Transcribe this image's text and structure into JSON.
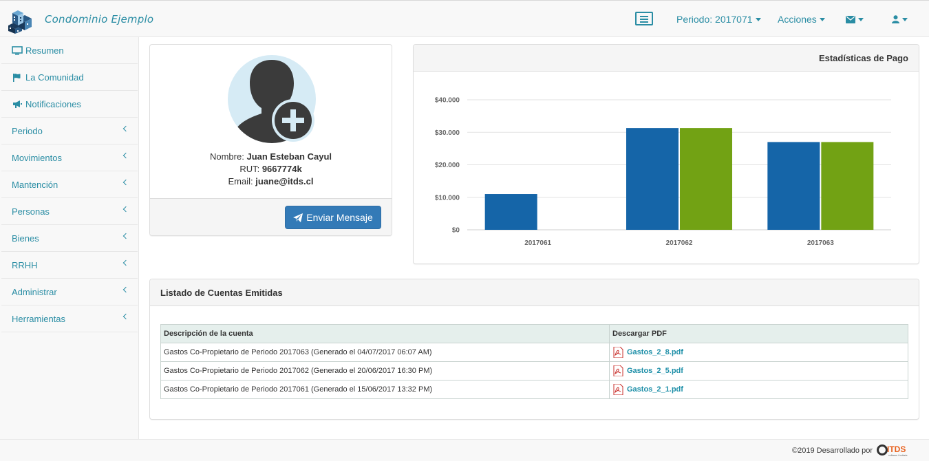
{
  "app": {
    "title": "Condominio Ejemplo"
  },
  "navbar": {
    "periodo_label": "Periodo: 2017071",
    "acciones_label": "Acciones"
  },
  "sidebar": {
    "items": [
      {
        "label": "Resumen",
        "icon": "monitor-icon"
      },
      {
        "label": "La Comunidad",
        "icon": "flag-icon"
      },
      {
        "label": "Notificaciones",
        "icon": "bullhorn-icon"
      },
      {
        "label": "Periodo",
        "icon": "chevron-left-icon"
      },
      {
        "label": "Movimientos",
        "icon": "chevron-left-icon"
      },
      {
        "label": "Mantención",
        "icon": "chevron-left-icon"
      },
      {
        "label": "Personas",
        "icon": "chevron-left-icon"
      },
      {
        "label": "Bienes",
        "icon": "chevron-left-icon"
      },
      {
        "label": "RRHH",
        "icon": "chevron-left-icon"
      },
      {
        "label": "Administrar",
        "icon": "chevron-left-icon"
      },
      {
        "label": "Herramientas",
        "icon": "chevron-left-icon"
      }
    ]
  },
  "profile": {
    "nombre_label": "Nombre:",
    "nombre": "Juan Esteban Cayul",
    "rut_label": "RUT:",
    "rut": "9667774k",
    "email_label": "Email:",
    "email": "juane@itds.cl",
    "send_button": "Enviar Mensaje"
  },
  "stats": {
    "title": "Estadísticas de Pago"
  },
  "chart_data": {
    "type": "bar",
    "title": "Estadísticas de Pago",
    "categories": [
      "2017061",
      "2017062",
      "2017063"
    ],
    "series": [
      {
        "name": "",
        "color": "#1565a8",
        "values": [
          11000,
          31300,
          27000
        ]
      },
      {
        "name": "",
        "color": "#72a214",
        "values": [
          0,
          31300,
          27000
        ]
      }
    ],
    "ylim": [
      0,
      40000
    ],
    "yticks": [
      "$0",
      "$10.000",
      "$20.000",
      "$30.000",
      "$40.000"
    ],
    "grid": true
  },
  "accounts": {
    "title": "Listado de Cuentas Emitidas",
    "columns": [
      "Descripción de la cuenta",
      "Descargar PDF"
    ],
    "rows": [
      {
        "description": "Gastos Co-Propietario de Periodo 2017063 (Generado el 04/07/2017 06:07 AM)",
        "file": "Gastos_2_8.pdf"
      },
      {
        "description": "Gastos Co-Propietario de Periodo 2017062 (Generado el 20/06/2017 16:30 PM)",
        "file": "Gastos_2_5.pdf"
      },
      {
        "description": "Gastos Co-Propietario de Periodo 2017061 (Generado el 15/06/2017 13:32 PM)",
        "file": "Gastos_2_1.pdf"
      }
    ]
  },
  "footer": {
    "text": "©2019 Desarrollado por",
    "logo_text": "ITDS",
    "logo_tagline": "software Limitada"
  }
}
